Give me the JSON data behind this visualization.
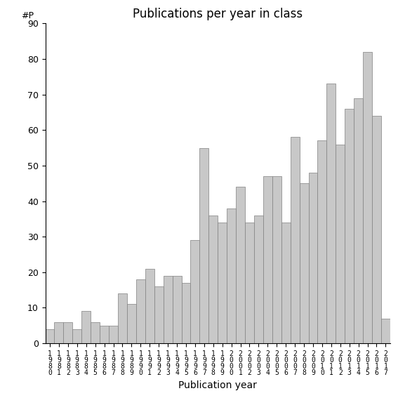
{
  "title": "Publications per year in class",
  "xlabel": "Publication year",
  "ylabel": "#P",
  "years": [
    "1980",
    "1981",
    "1982",
    "1983",
    "1984",
    "1985",
    "1986",
    "1987",
    "1988",
    "1989",
    "1990",
    "1991",
    "1992",
    "1993",
    "1994",
    "1995",
    "1996",
    "1997",
    "1998",
    "1999",
    "2000",
    "2001",
    "2002",
    "2003",
    "2004",
    "2005",
    "2006",
    "2007",
    "2008",
    "2009",
    "2010",
    "2011",
    "2012",
    "2013",
    "2014",
    "2015",
    "2016",
    "2017"
  ],
  "values": [
    4,
    6,
    6,
    4,
    9,
    6,
    5,
    5,
    14,
    11,
    18,
    21,
    16,
    19,
    19,
    17,
    29,
    55,
    36,
    34,
    38,
    44,
    34,
    36,
    47,
    47,
    34,
    58,
    45,
    48,
    57,
    73,
    56,
    66,
    69,
    82,
    64,
    7
  ],
  "bar_color": "#c8c8c8",
  "bar_edgecolor": "#808080",
  "ylim": [
    0,
    90
  ],
  "yticks": [
    0,
    10,
    20,
    30,
    40,
    50,
    60,
    70,
    80,
    90
  ],
  "background_color": "#ffffff",
  "title_fontsize": 12,
  "xlabel_fontsize": 10,
  "tick_fontsize": 9,
  "ylabel_text_fontsize": 9
}
